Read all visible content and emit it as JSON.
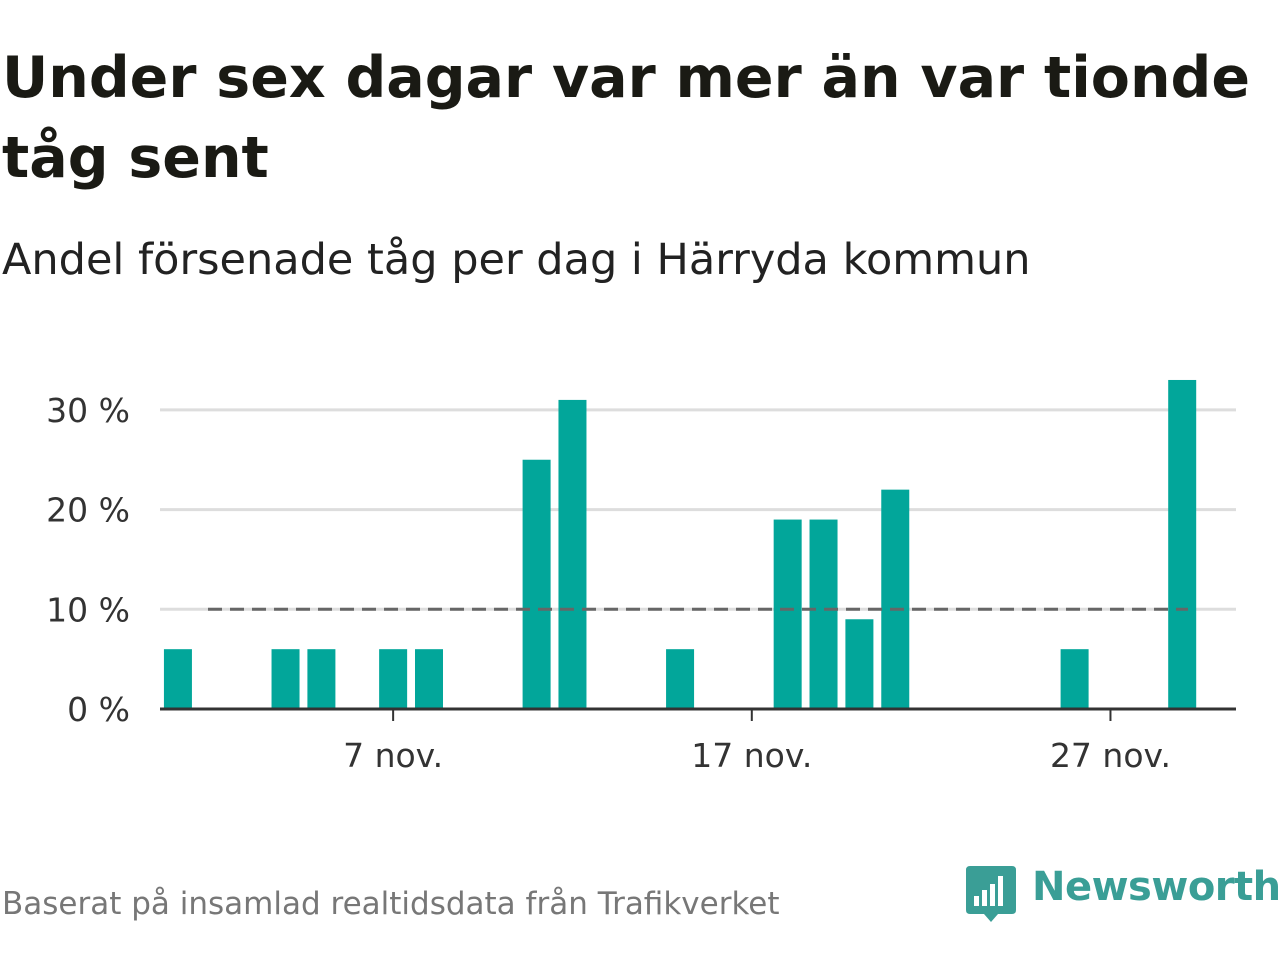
{
  "title": "Under sex dagar var mer än var tionde tåg sent",
  "subtitle": "Andel försenade tåg per dag i Härryda kommun",
  "footer": "Baserat på insamlad realtidsdata från Trafikverket",
  "brand": {
    "name": "Newsworthy",
    "color": "#3a9e96"
  },
  "colors": {
    "bar": "#02a69a",
    "reference_line": "#666666",
    "grid": "#dddddd",
    "axis": "#333333"
  },
  "chart_data": {
    "type": "bar",
    "x_unit": "day of November",
    "x": [
      1,
      4,
      5,
      7,
      8,
      11,
      12,
      15,
      18,
      19,
      20,
      21,
      26,
      29
    ],
    "values": [
      6,
      6,
      6,
      6,
      6,
      25,
      31,
      6,
      19,
      19,
      9,
      22,
      6,
      33
    ],
    "ylim": [
      0,
      34
    ],
    "xlim": [
      0.5,
      30.5
    ],
    "y_ticks": [
      0,
      10,
      20,
      30
    ],
    "y_tick_labels": [
      "0 %",
      "10 %",
      "20 %",
      "30 %"
    ],
    "x_ticks": [
      7,
      17,
      27
    ],
    "x_tick_labels": [
      "7 nov.",
      "17 nov.",
      "27 nov."
    ],
    "reference_line": {
      "value": 10,
      "style": "dashed"
    },
    "grid": true
  }
}
